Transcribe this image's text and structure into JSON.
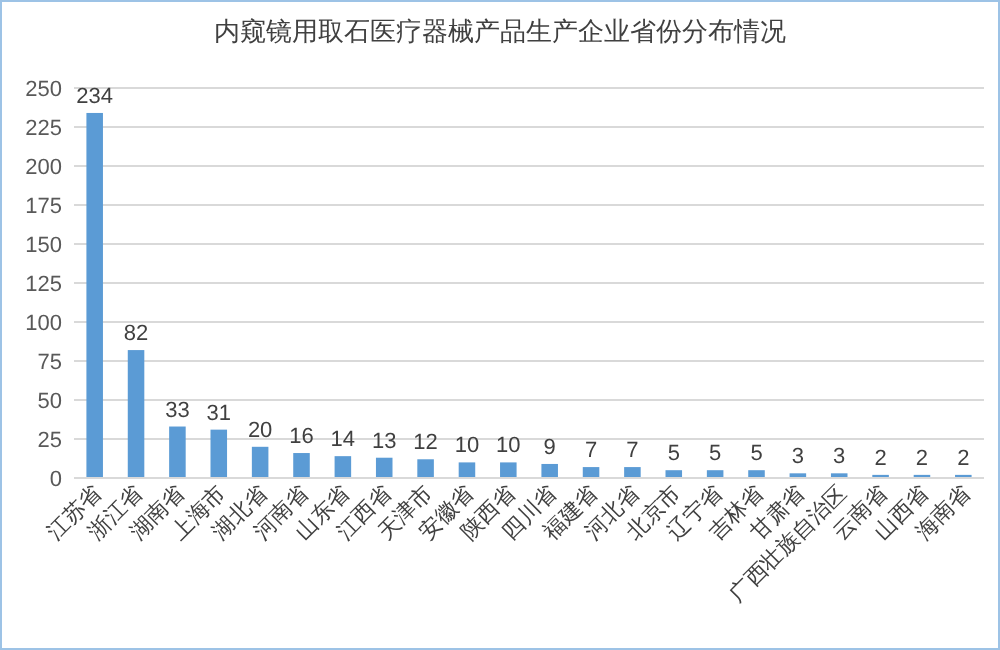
{
  "chart_data": {
    "type": "bar",
    "title": "内窥镜用取石医疗器械产品生产企业省份分布情况",
    "categories": [
      "江苏省",
      "浙江省",
      "湖南省",
      "上海市",
      "湖北省",
      "河南省",
      "山东省",
      "江西省",
      "天津市",
      "安徽省",
      "陕西省",
      "四川省",
      "福建省",
      "河北省",
      "北京市",
      "辽宁省",
      "吉林省",
      "甘肃省",
      "广西壮族自治区",
      "云南省",
      "山西省",
      "海南省"
    ],
    "values": [
      234,
      82,
      33,
      31,
      20,
      16,
      14,
      13,
      12,
      10,
      10,
      9,
      7,
      7,
      5,
      5,
      5,
      3,
      3,
      2,
      2,
      2
    ],
    "color": "#5b9bd5",
    "ylim": [
      0,
      250
    ],
    "yticks": [
      0,
      25,
      50,
      75,
      100,
      125,
      150,
      175,
      200,
      225,
      250
    ],
    "grid": "y",
    "data_labels": true
  }
}
